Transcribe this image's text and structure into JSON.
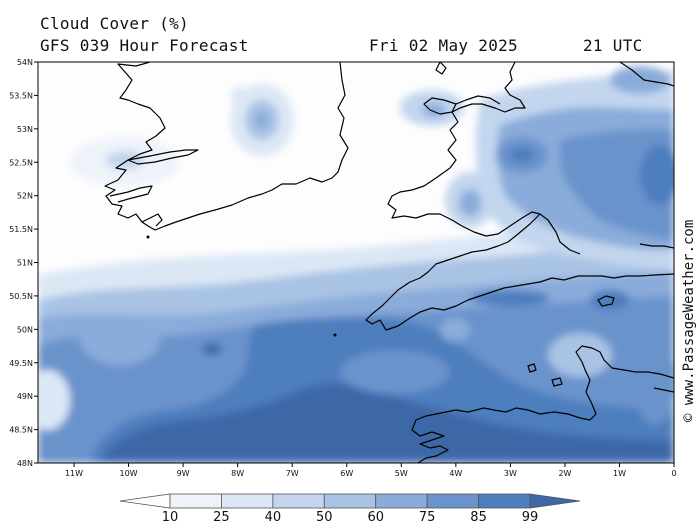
{
  "header": {
    "title": "Cloud Cover (%)",
    "model_line": "GFS 039 Hour Forecast",
    "date": "Fri 02 May 2025",
    "time": "21 UTC"
  },
  "map": {
    "lat_labels": [
      "54N",
      "53.5N",
      "53N",
      "52.5N",
      "52N",
      "51.5N",
      "51N",
      "50.5N",
      "50N",
      "49.5N",
      "49N",
      "48.5N",
      "48N"
    ],
    "lon_labels": [
      "11W",
      "10W",
      "9W",
      "8W",
      "7W",
      "6W",
      "5W",
      "4W",
      "3W",
      "2W",
      "1W",
      "0"
    ]
  },
  "legend": {
    "labels": [
      "10",
      "25",
      "40",
      "50",
      "60",
      "75",
      "85",
      "99"
    ],
    "colors": [
      "#fdfdfe",
      "#eef3fa",
      "#dce7f5",
      "#c3d6ee",
      "#a9c3e4",
      "#8aacda",
      "#6a93cc",
      "#4d7ebd",
      "#3c68a8"
    ]
  },
  "credit": "© www.PassageWeather.com"
}
